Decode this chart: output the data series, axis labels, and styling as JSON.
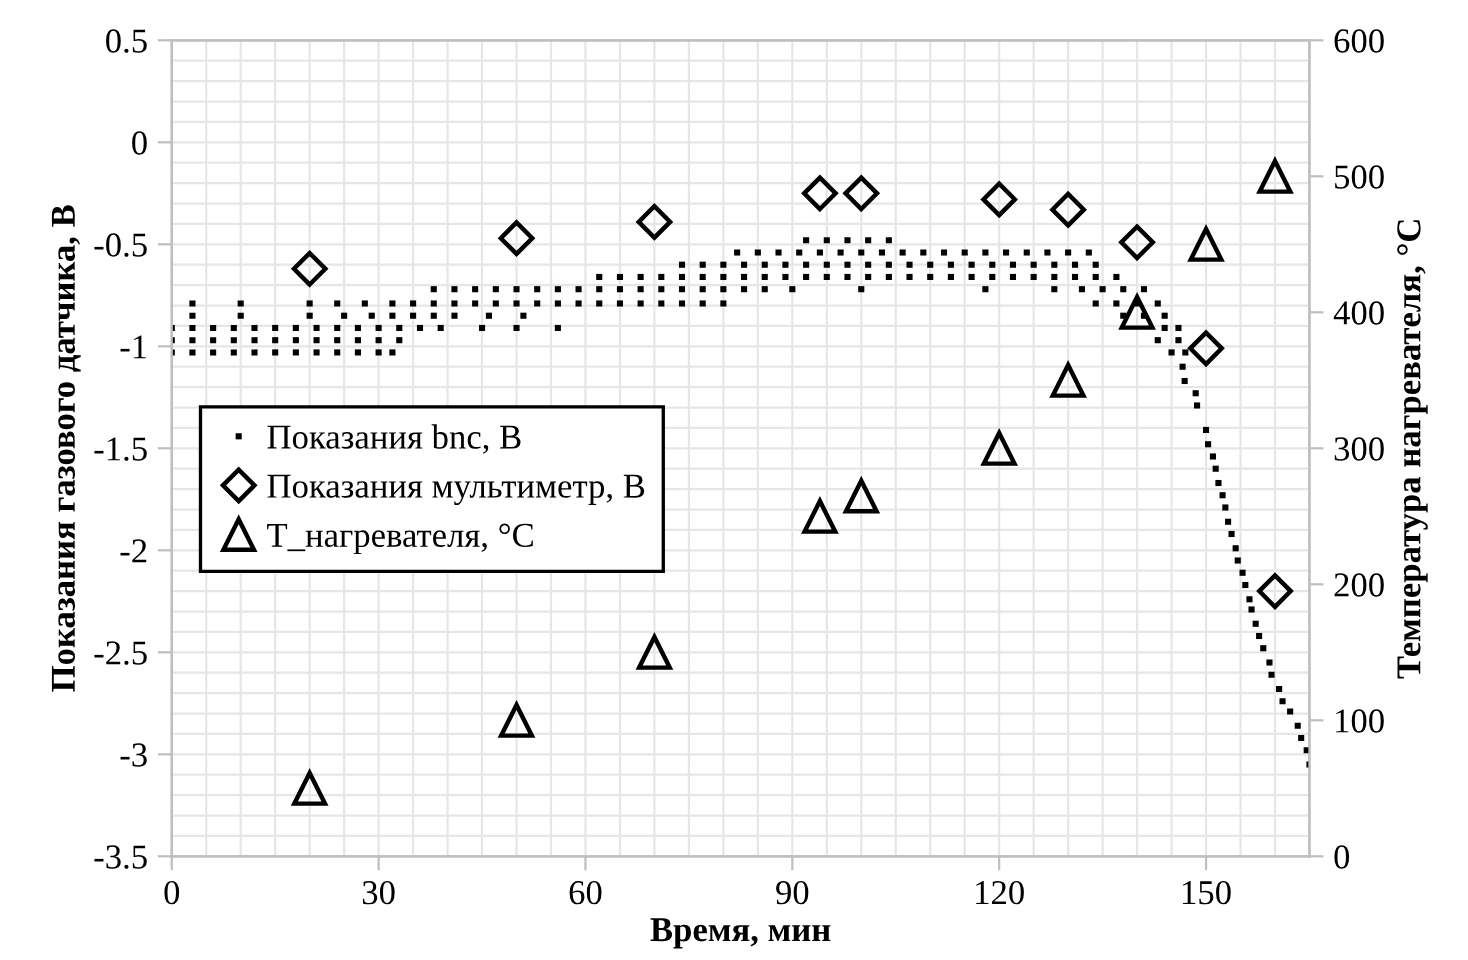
{
  "chart_data": {
    "type": "scatter",
    "xlabel": "Время, мин",
    "ylabel": "Показания газового датчика, В",
    "y2label": "Температура нагревателя, °C",
    "xlim": [
      0,
      165
    ],
    "xticks": [
      0,
      30,
      60,
      90,
      120,
      150
    ],
    "ylim": [
      -3.5,
      0.5
    ],
    "yticks": [
      -3.5,
      -3,
      -2.5,
      -2,
      -1.5,
      -1,
      -0.5,
      0,
      0.5
    ],
    "y2lim": [
      0,
      600
    ],
    "y2ticks": [
      0,
      100,
      200,
      300,
      400,
      500,
      600
    ],
    "grid": true,
    "legend": "center left",
    "series": [
      {
        "name": "Показания bnc, В",
        "color": "#000000",
        "marker": "square",
        "x": [
          0,
          3,
          6,
          9,
          12,
          15,
          18,
          21,
          24,
          27,
          30,
          32,
          145,
          147,
          0,
          3,
          6,
          9,
          12,
          15,
          18,
          21,
          24,
          27,
          30,
          33,
          143,
          146,
          0,
          3,
          6,
          9,
          12,
          15,
          18,
          21,
          24,
          27,
          30,
          33,
          36,
          39,
          45,
          50,
          56,
          144,
          146,
          3,
          10,
          20,
          25,
          29,
          32,
          35,
          38,
          41,
          46,
          51,
          138,
          141,
          144,
          3,
          10,
          20,
          24,
          28,
          32,
          35,
          38,
          41,
          44,
          47,
          50,
          53,
          56,
          59,
          62,
          65,
          68,
          71,
          74,
          77,
          80,
          134,
          137,
          140,
          143,
          38,
          41,
          44,
          47,
          50,
          53,
          56,
          59,
          62,
          65,
          68,
          71,
          74,
          77,
          80,
          83,
          86,
          90,
          100,
          118,
          128,
          132,
          135,
          138,
          141,
          62,
          65,
          68,
          71,
          74,
          77,
          80,
          83,
          86,
          89,
          92,
          95,
          98,
          101,
          104,
          107,
          110,
          113,
          116,
          119,
          122,
          125,
          128,
          131,
          134,
          137,
          74,
          77,
          80,
          83,
          86,
          89,
          92,
          95,
          98,
          101,
          104,
          107,
          110,
          113,
          116,
          119,
          122,
          125,
          128,
          131,
          134,
          82,
          85,
          88,
          91,
          94,
          97,
          100,
          103,
          106,
          109,
          112,
          115,
          118,
          121,
          124,
          127,
          130,
          133,
          92,
          95,
          98,
          101,
          104,
          146.6,
          146.9,
          148.5,
          148.7,
          150.0,
          150.3,
          151.0,
          151.4,
          151.8,
          152.4,
          152.8,
          153.2,
          153.7,
          154.3,
          154.6,
          155.3,
          155.7,
          156.3,
          156.6,
          157.2,
          157.7,
          158.3,
          159.2,
          159.5,
          160.6,
          161.1,
          162.2,
          163.3,
          163.8,
          164.6,
          165
        ],
        "values": [
          -1.03,
          -1.03,
          -1.03,
          -1.03,
          -1.03,
          -1.03,
          -1.03,
          -1.03,
          -1.03,
          -1.03,
          -1.03,
          -1.03,
          -1.03,
          -1.03,
          -0.97,
          -0.97,
          -0.97,
          -0.97,
          -0.97,
          -0.97,
          -0.97,
          -0.97,
          -0.97,
          -0.97,
          -0.97,
          -0.97,
          -0.97,
          -0.97,
          -0.91,
          -0.91,
          -0.91,
          -0.91,
          -0.91,
          -0.91,
          -0.91,
          -0.91,
          -0.91,
          -0.91,
          -0.91,
          -0.91,
          -0.91,
          -0.91,
          -0.91,
          -0.91,
          -0.91,
          -0.91,
          -0.91,
          -0.85,
          -0.85,
          -0.85,
          -0.85,
          -0.85,
          -0.85,
          -0.85,
          -0.85,
          -0.85,
          -0.85,
          -0.85,
          -0.85,
          -0.85,
          -0.85,
          -0.79,
          -0.79,
          -0.79,
          -0.79,
          -0.79,
          -0.79,
          -0.79,
          -0.79,
          -0.79,
          -0.79,
          -0.79,
          -0.79,
          -0.79,
          -0.79,
          -0.79,
          -0.79,
          -0.79,
          -0.79,
          -0.79,
          -0.79,
          -0.79,
          -0.79,
          -0.79,
          -0.79,
          -0.79,
          -0.79,
          -0.72,
          -0.72,
          -0.72,
          -0.72,
          -0.72,
          -0.72,
          -0.72,
          -0.72,
          -0.72,
          -0.72,
          -0.72,
          -0.72,
          -0.72,
          -0.72,
          -0.72,
          -0.72,
          -0.72,
          -0.72,
          -0.72,
          -0.72,
          -0.72,
          -0.72,
          -0.72,
          -0.72,
          -0.72,
          -0.66,
          -0.66,
          -0.66,
          -0.66,
          -0.66,
          -0.66,
          -0.66,
          -0.66,
          -0.66,
          -0.66,
          -0.66,
          -0.66,
          -0.66,
          -0.66,
          -0.66,
          -0.66,
          -0.66,
          -0.66,
          -0.66,
          -0.66,
          -0.66,
          -0.66,
          -0.66,
          -0.66,
          -0.66,
          -0.66,
          -0.6,
          -0.6,
          -0.6,
          -0.6,
          -0.6,
          -0.6,
          -0.6,
          -0.6,
          -0.6,
          -0.6,
          -0.6,
          -0.6,
          -0.6,
          -0.6,
          -0.6,
          -0.6,
          -0.6,
          -0.6,
          -0.6,
          -0.6,
          -0.6,
          -0.54,
          -0.54,
          -0.54,
          -0.54,
          -0.54,
          -0.54,
          -0.54,
          -0.54,
          -0.54,
          -0.54,
          -0.54,
          -0.54,
          -0.54,
          -0.54,
          -0.54,
          -0.54,
          -0.54,
          -0.54,
          -0.48,
          -0.48,
          -0.48,
          -0.48,
          -0.48,
          -1.1,
          -1.17,
          -1.23,
          -1.29,
          -1.41,
          -1.48,
          -1.54,
          -1.6,
          -1.67,
          -1.73,
          -1.79,
          -1.86,
          -1.92,
          -1.99,
          -2.05,
          -2.11,
          -2.17,
          -2.24,
          -2.29,
          -2.36,
          -2.42,
          -2.48,
          -2.55,
          -2.61,
          -2.68,
          -2.74,
          -2.79,
          -2.86,
          -2.92,
          -2.98,
          -3.05
        ]
      },
      {
        "name": "Показания мультиметр, В",
        "color": "#000000",
        "marker": "diamond",
        "x": [
          20,
          50,
          70,
          94,
          100,
          120,
          130,
          140,
          150,
          160
        ],
        "values": [
          -0.62,
          -0.47,
          -0.39,
          -0.25,
          -0.25,
          -0.28,
          -0.33,
          -0.49,
          -1.01,
          -2.2
        ]
      },
      {
        "name": "T_нагревателя, °C",
        "color": "#000000",
        "marker": "triangle",
        "axis": "y2",
        "x": [
          20,
          50,
          70,
          94,
          100,
          120,
          130,
          140,
          150,
          160
        ],
        "values": [
          50,
          100,
          150,
          250,
          265,
          300,
          350,
          400,
          450,
          500
        ]
      }
    ]
  }
}
